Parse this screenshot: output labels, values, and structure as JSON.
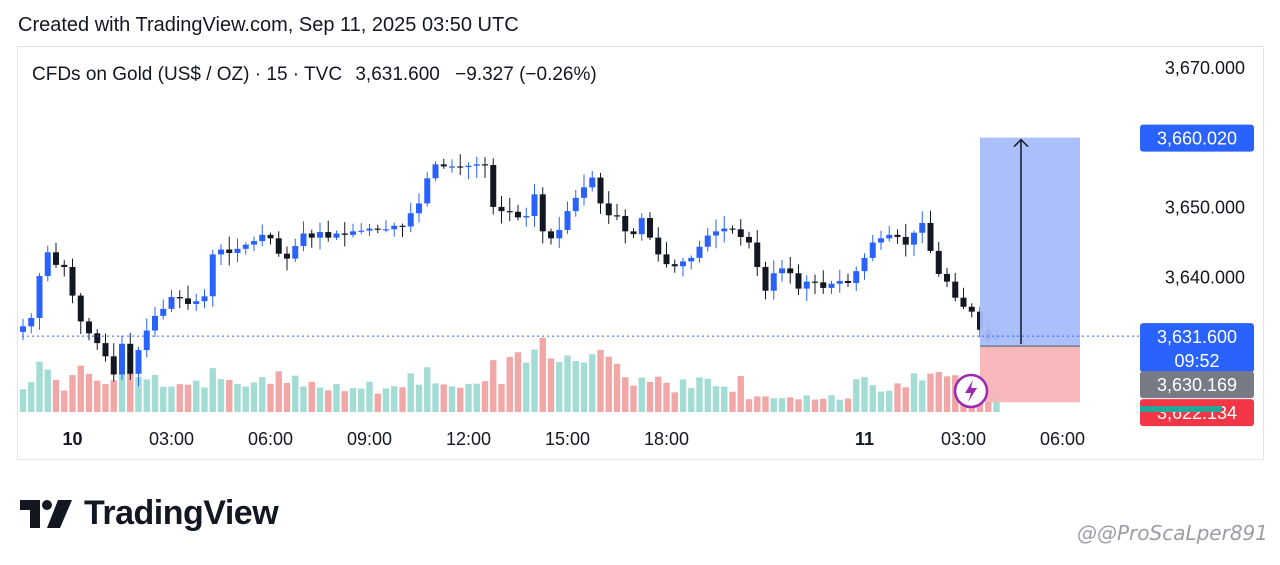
{
  "header": {
    "created_text": "Created with TradingView.com, Sep 11, 2025 03:50 UTC"
  },
  "brand": {
    "name": "TradingView"
  },
  "watermark": {
    "text": "@@ProScaLper891"
  },
  "colors": {
    "up": "#2962ff",
    "down": "#131722",
    "vol_up": "#a3dcd4",
    "vol_down": "#f2a7a7",
    "target_zone": "#a6bdfb",
    "stop_zone": "#f8b4b8",
    "label_target": "#2962ff",
    "label_last": "#2962ff",
    "label_entry": "#787b86",
    "label_stop": "#f23645",
    "lightning": "#9c27b0"
  },
  "chart_data": {
    "type": "candlestick",
    "title": "CFDs on Gold (US$ / OZ) · 15 · TVC",
    "last_price": "3,631.600",
    "change": "−9.327 (−0.26%)",
    "ylim": [
      3614,
      3673
    ],
    "y_ticks": [
      3670,
      3660,
      3650,
      3640
    ],
    "y_tick_labels": [
      "3,670.000",
      "3,650.000",
      "3,640.000"
    ],
    "x_ticks": [
      {
        "label": "10",
        "bold": true,
        "bar": 6
      },
      {
        "label": "03:00",
        "bar": 18
      },
      {
        "label": "06:00",
        "bar": 30
      },
      {
        "label": "09:00",
        "bar": 42
      },
      {
        "label": "12:00",
        "bar": 54
      },
      {
        "label": "15:00",
        "bar": 66
      },
      {
        "label": "18:00",
        "bar": 78
      },
      {
        "label": "11",
        "bold": true,
        "bar": 102
      },
      {
        "label": "03:00",
        "bar": 114
      },
      {
        "label": "06:00",
        "bar": 126
      }
    ],
    "closes": [
      3633.0,
      3634.2,
      3640.2,
      3643.6,
      3641.8,
      3641.5,
      3637.4,
      3633.7,
      3632.0,
      3630.6,
      3628.7,
      3626.1,
      3630.5,
      3626.2,
      3629.6,
      3632.4,
      3634.5,
      3635.5,
      3637.2,
      3637.0,
      3636.2,
      3636.6,
      3637.3,
      3643.3,
      3644.0,
      3643.5,
      3644.1,
      3644.7,
      3645.2,
      3646.1,
      3645.6,
      3643.4,
      3642.7,
      3644.5,
      3646.3,
      3645.7,
      3646.5,
      3645.7,
      3646.3,
      3646.1,
      3646.6,
      3646.7,
      3647.0,
      3646.9,
      3646.9,
      3647.4,
      3647.3,
      3649.2,
      3650.6,
      3654.2,
      3656.2,
      3655.9,
      3655.9,
      3655.8,
      3656.0,
      3656.2,
      3656.1,
      3650.1,
      3649.5,
      3649.4,
      3648.6,
      3648.8,
      3651.9,
      3646.6,
      3645.6,
      3646.8,
      3649.5,
      3651.4,
      3652.9,
      3654.3,
      3650.6,
      3648.9,
      3648.8,
      3646.6,
      3646.2,
      3648.5,
      3645.7,
      3643.3,
      3641.9,
      3641.6,
      3642.3,
      3642.8,
      3644.4,
      3646.0,
      3646.6,
      3647.0,
      3646.9,
      3645.8,
      3645.0,
      3641.5,
      3638.1,
      3640.6,
      3641.3,
      3640.6,
      3638.4,
      3639.4,
      3639.3,
      3638.5,
      3639.1,
      3639.5,
      3639.2,
      3640.9,
      3642.8,
      3645.0,
      3645.6,
      3646.1,
      3645.8,
      3644.7,
      3646.4,
      3647.8,
      3643.8,
      3640.5,
      3639.4,
      3637.1,
      3635.8,
      3635.1,
      3632.5,
      3631.1,
      3631.6
    ],
    "target_price": "3,660.020",
    "entry_price": "3,630.169",
    "stop_price": "3,622.134",
    "countdown": "09:52",
    "levels": {
      "target": 3660.02,
      "entry": 3630.169,
      "stop": 3622.134,
      "last": 3631.6
    }
  }
}
